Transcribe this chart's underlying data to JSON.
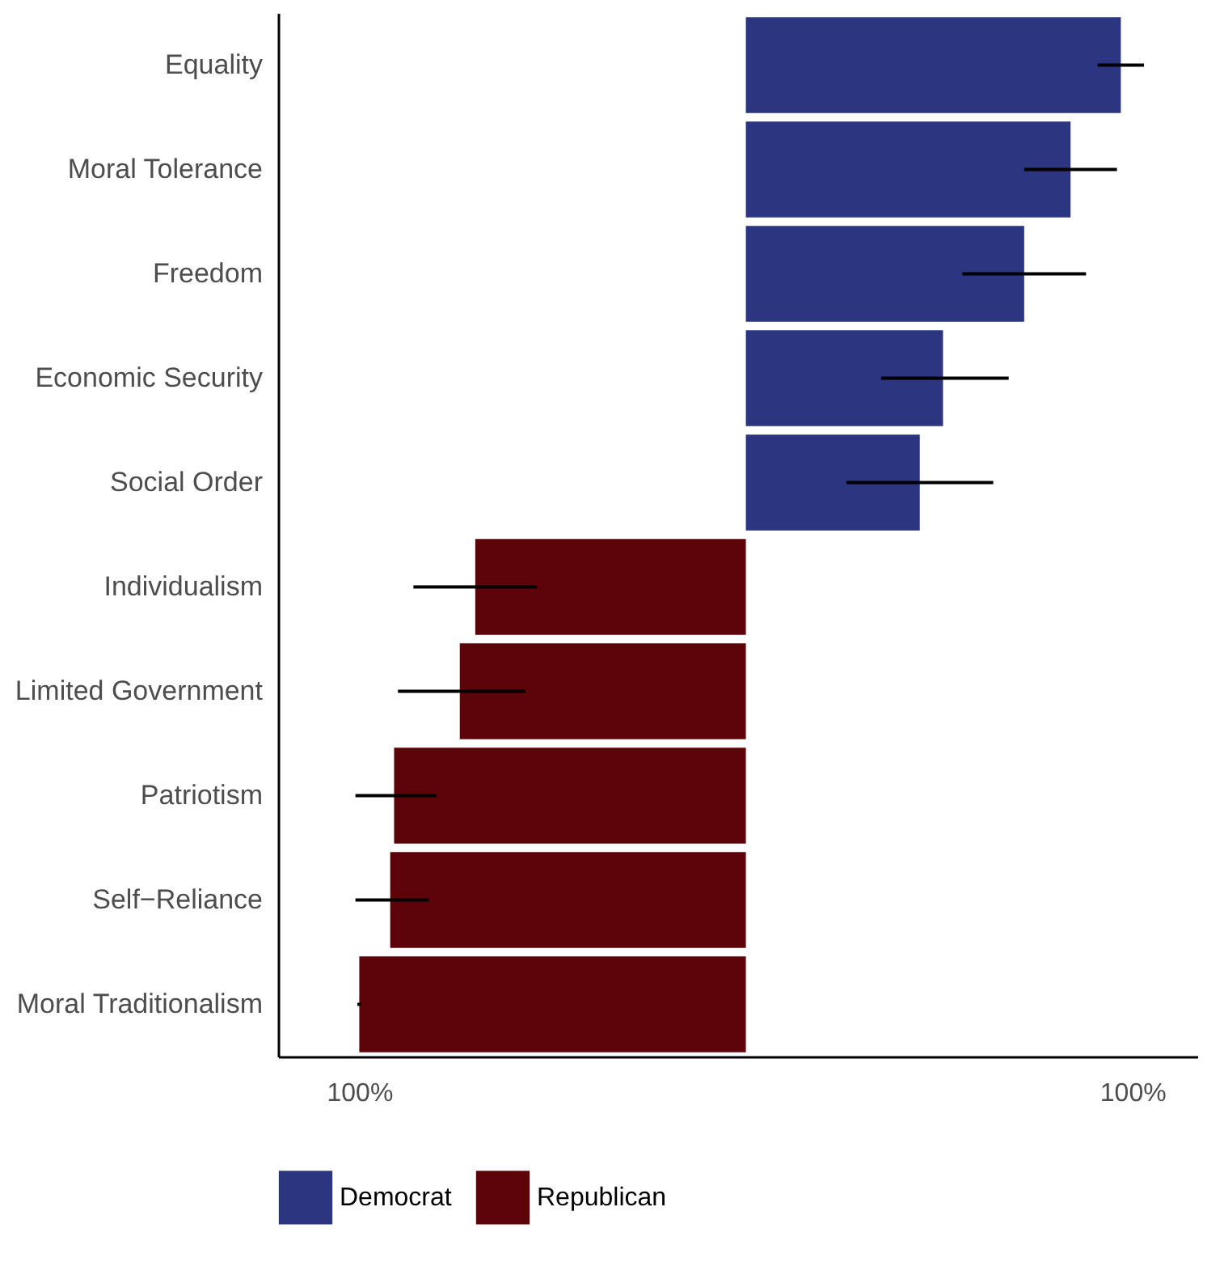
{
  "chart_data": {
    "type": "bar",
    "orientation": "horizontal",
    "categories": [
      "Equality",
      "Moral Tolerance",
      "Freedom",
      "Economic Security",
      "Social Order",
      "Individualism",
      "Limited Government",
      "Patriotism",
      "Self−Reliance",
      "Moral Traditionalism"
    ],
    "series": [
      {
        "name": "Democrat",
        "color": "#2b3580",
        "values": [
          97,
          84,
          72,
          51,
          45,
          null,
          null,
          null,
          null,
          null
        ],
        "errors": [
          [
            91,
            103
          ],
          [
            72,
            96
          ],
          [
            56,
            88
          ],
          [
            35,
            68
          ],
          [
            26,
            64
          ],
          null,
          null,
          null,
          null,
          null
        ]
      },
      {
        "name": "Republican",
        "color": "#5c0409",
        "values": [
          null,
          null,
          null,
          null,
          null,
          -70,
          -74,
          -91,
          -92,
          -100
        ],
        "errors": [
          null,
          null,
          null,
          null,
          null,
          [
            -86,
            -54
          ],
          [
            -90,
            -57
          ],
          [
            -101,
            -80
          ],
          [
            -101,
            -82
          ],
          [
            -100.5,
            -99.5
          ]
        ]
      }
    ],
    "xlim": [
      -121,
      117
    ],
    "xticks": [
      {
        "value": -100,
        "label": "100%"
      },
      {
        "value": 100,
        "label": "100%"
      }
    ],
    "grid": false,
    "legend": "bottom"
  }
}
